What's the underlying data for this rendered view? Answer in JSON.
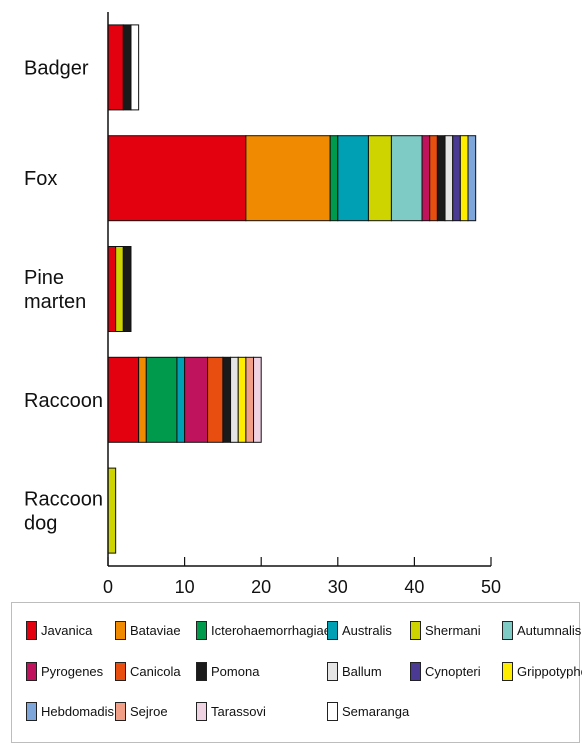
{
  "chart_data": {
    "type": "bar",
    "orientation": "horizontal",
    "stacked": true,
    "categories": [
      {
        "lines": [
          "Badger"
        ]
      },
      {
        "lines": [
          "Fox"
        ]
      },
      {
        "lines": [
          "Pine",
          "marten"
        ]
      },
      {
        "lines": [
          "Raccoon"
        ]
      },
      {
        "lines": [
          "Raccoon",
          "dog"
        ]
      }
    ],
    "x_ticks": [
      0,
      10,
      20,
      30,
      40,
      50
    ],
    "xlim": [
      0,
      50
    ],
    "grid": false,
    "legend_position": "bottom",
    "series": [
      {
        "name": "Javanica",
        "color": "#e3000f",
        "values": [
          2,
          18,
          1,
          4,
          0
        ]
      },
      {
        "name": "Bataviae",
        "color": "#f08a00",
        "values": [
          0,
          11,
          0,
          1,
          0
        ]
      },
      {
        "name": "Icterohaemorrhagiae",
        "color": "#009a4c",
        "values": [
          0,
          1,
          0,
          4,
          0
        ]
      },
      {
        "name": "Australis",
        "color": "#00a0b4",
        "values": [
          0,
          4,
          0,
          1,
          0
        ]
      },
      {
        "name": "Shermani",
        "color": "#cdd400",
        "values": [
          0,
          3,
          1,
          0,
          1
        ]
      },
      {
        "name": "Autumnalis",
        "color": "#7dcbc4",
        "values": [
          0,
          4,
          0,
          0,
          0
        ]
      },
      {
        "name": "Pyrogenes",
        "color": "#c0135d",
        "values": [
          0,
          1,
          0,
          3,
          0
        ]
      },
      {
        "name": "Canicola",
        "color": "#e84e0f",
        "values": [
          0,
          1,
          0,
          2,
          0
        ]
      },
      {
        "name": "Pomona",
        "color": "#1a1a1a",
        "values": [
          1,
          1,
          1,
          1,
          0
        ]
      },
      {
        "name": "Ballum",
        "color": "#e5e5e5",
        "values": [
          0,
          1,
          0,
          1,
          0
        ]
      },
      {
        "name": "Cynopteri",
        "color": "#4a3a93",
        "values": [
          0,
          1,
          0,
          0,
          0
        ]
      },
      {
        "name": "Grippotyphosa",
        "color": "#ffed00",
        "values": [
          0,
          1,
          0,
          1,
          0
        ]
      },
      {
        "name": "Hebdomadis",
        "color": "#7ea6da",
        "values": [
          0,
          1,
          0,
          0,
          0
        ]
      },
      {
        "name": "Sejroe",
        "color": "#f19f86",
        "values": [
          0,
          0,
          0,
          1,
          0
        ]
      },
      {
        "name": "Tarassovi",
        "color": "#efd3e3",
        "values": [
          0,
          0,
          0,
          1,
          0
        ]
      },
      {
        "name": "Semaranga",
        "color": "#ffffff",
        "values": [
          1,
          0,
          0,
          0,
          0
        ]
      }
    ]
  }
}
